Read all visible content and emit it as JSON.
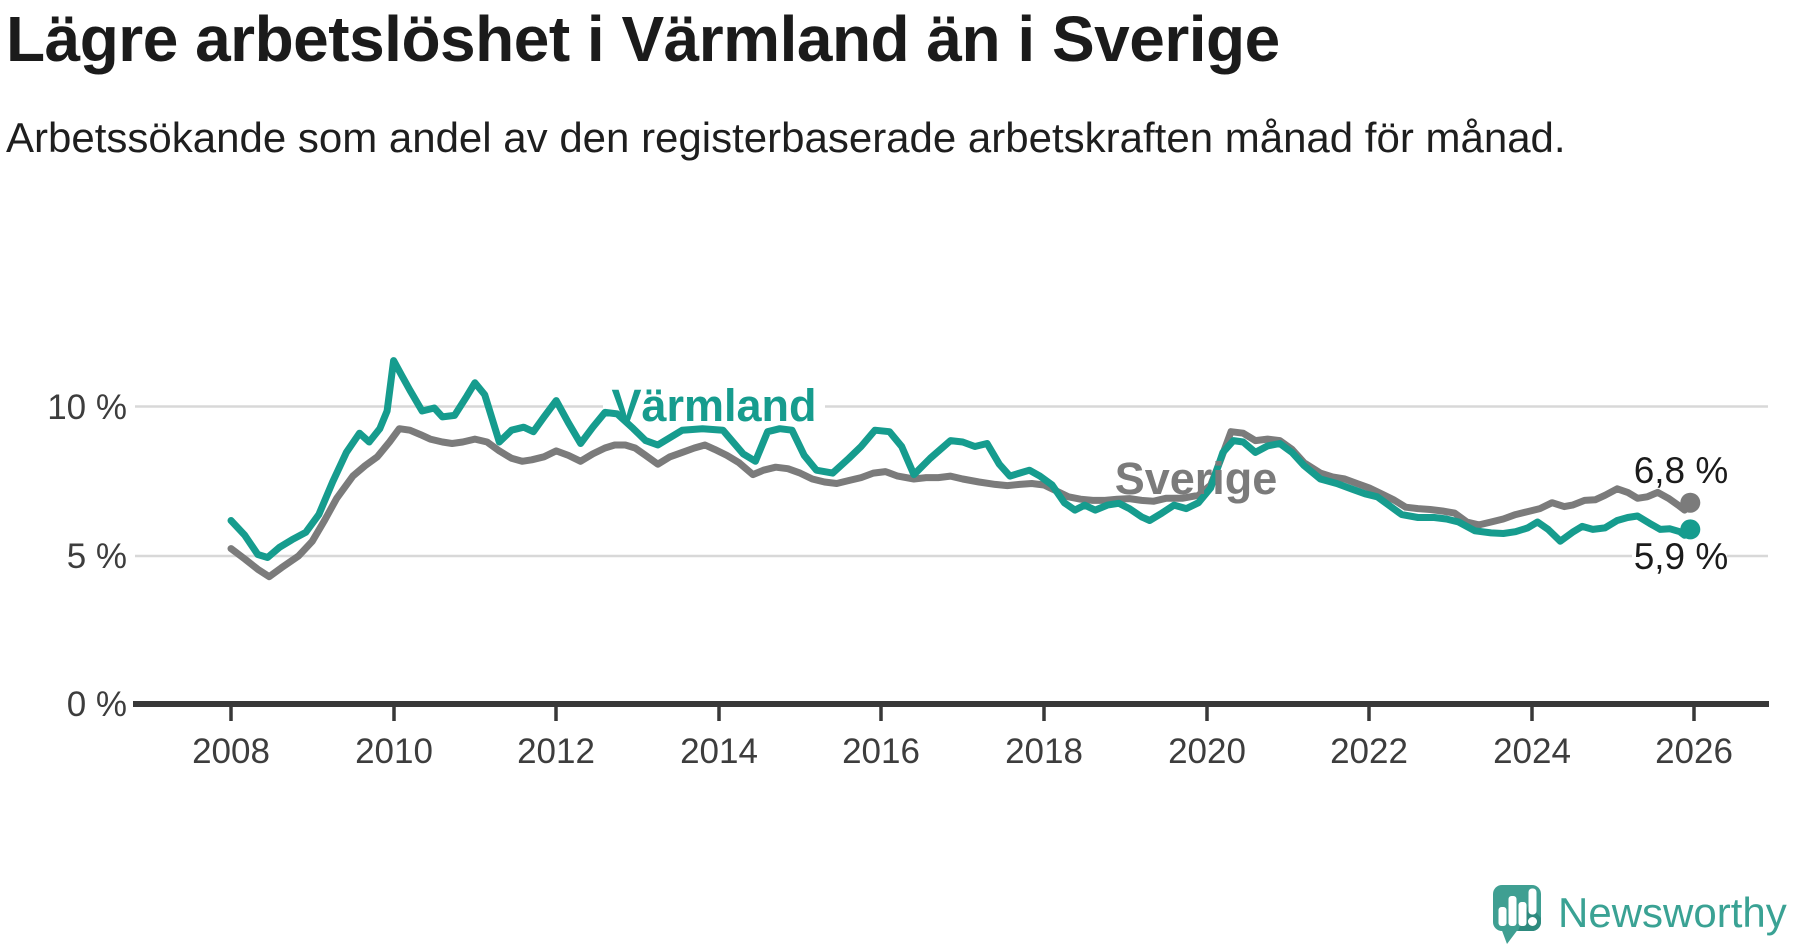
{
  "title": "Lägre arbetslöshet i Värmland än i Sverige",
  "subtitle": "Arbetssökande som andel av den registerbaserade arbetskraften månad för månad.",
  "axes": {
    "y_ticks": [
      "0 %",
      "5 %",
      "10 %"
    ],
    "x_ticks": [
      "2008",
      "2010",
      "2012",
      "2014",
      "2016",
      "2018",
      "2020",
      "2022",
      "2024",
      "2026"
    ]
  },
  "branding": {
    "wordmark": "Newsworthy",
    "color": "#3aa294"
  },
  "chart_data": {
    "type": "line",
    "title": "Lägre arbetslöshet i Värmland än i Sverige",
    "subtitle": "Arbetssökande som andel av den registerbaserade arbetskraften månad för månad.",
    "unit": "%",
    "xlabel": "",
    "ylabel": "",
    "xlim": [
      2007.6,
      2026.9
    ],
    "ylim": [
      0,
      11.8
    ],
    "grid": "horizontal",
    "grid_y_values": [
      5,
      10
    ],
    "legend_position": "inline-labels",
    "series": [
      {
        "name": "Sverige",
        "color": "#7b7b7b",
        "end_label": "6,8 %",
        "end_value": 6.8,
        "points": [
          [
            2008.0,
            5.25
          ],
          [
            2008.17,
            4.9
          ],
          [
            2008.33,
            4.55
          ],
          [
            2008.47,
            4.3
          ],
          [
            2008.62,
            4.6
          ],
          [
            2008.83,
            5.0
          ],
          [
            2009.0,
            5.5
          ],
          [
            2009.15,
            6.2
          ],
          [
            2009.3,
            6.95
          ],
          [
            2009.5,
            7.7
          ],
          [
            2009.65,
            8.05
          ],
          [
            2009.8,
            8.35
          ],
          [
            2009.95,
            8.85
          ],
          [
            2010.07,
            9.3
          ],
          [
            2010.2,
            9.25
          ],
          [
            2010.33,
            9.1
          ],
          [
            2010.45,
            8.95
          ],
          [
            2010.6,
            8.85
          ],
          [
            2010.72,
            8.8
          ],
          [
            2010.85,
            8.85
          ],
          [
            2011.0,
            8.95
          ],
          [
            2011.15,
            8.85
          ],
          [
            2011.3,
            8.55
          ],
          [
            2011.45,
            8.3
          ],
          [
            2011.58,
            8.2
          ],
          [
            2011.7,
            8.25
          ],
          [
            2011.85,
            8.35
          ],
          [
            2012.0,
            8.55
          ],
          [
            2012.15,
            8.4
          ],
          [
            2012.3,
            8.2
          ],
          [
            2012.45,
            8.45
          ],
          [
            2012.6,
            8.65
          ],
          [
            2012.72,
            8.75
          ],
          [
            2012.85,
            8.75
          ],
          [
            2012.97,
            8.65
          ],
          [
            2013.1,
            8.4
          ],
          [
            2013.25,
            8.1
          ],
          [
            2013.4,
            8.35
          ],
          [
            2013.55,
            8.5
          ],
          [
            2013.7,
            8.65
          ],
          [
            2013.83,
            8.75
          ],
          [
            2013.95,
            8.6
          ],
          [
            2014.1,
            8.4
          ],
          [
            2014.25,
            8.15
          ],
          [
            2014.42,
            7.75
          ],
          [
            2014.55,
            7.9
          ],
          [
            2014.7,
            8.0
          ],
          [
            2014.85,
            7.95
          ],
          [
            2015.0,
            7.8
          ],
          [
            2015.15,
            7.6
          ],
          [
            2015.3,
            7.5
          ],
          [
            2015.45,
            7.45
          ],
          [
            2015.6,
            7.55
          ],
          [
            2015.75,
            7.65
          ],
          [
            2015.9,
            7.8
          ],
          [
            2016.05,
            7.85
          ],
          [
            2016.2,
            7.7
          ],
          [
            2016.4,
            7.6
          ],
          [
            2016.55,
            7.65
          ],
          [
            2016.7,
            7.65
          ],
          [
            2016.85,
            7.7
          ],
          [
            2017.0,
            7.6
          ],
          [
            2017.2,
            7.5
          ],
          [
            2017.4,
            7.42
          ],
          [
            2017.55,
            7.38
          ],
          [
            2017.7,
            7.42
          ],
          [
            2017.85,
            7.45
          ],
          [
            2018.0,
            7.4
          ],
          [
            2018.15,
            7.2
          ],
          [
            2018.3,
            7.0
          ],
          [
            2018.45,
            6.92
          ],
          [
            2018.6,
            6.88
          ],
          [
            2018.75,
            6.88
          ],
          [
            2018.9,
            6.92
          ],
          [
            2019.05,
            6.94
          ],
          [
            2019.2,
            6.88
          ],
          [
            2019.35,
            6.85
          ],
          [
            2019.5,
            6.95
          ],
          [
            2019.7,
            6.95
          ],
          [
            2019.9,
            7.05
          ],
          [
            2020.05,
            7.4
          ],
          [
            2020.18,
            8.3
          ],
          [
            2020.3,
            9.2
          ],
          [
            2020.45,
            9.15
          ],
          [
            2020.6,
            8.9
          ],
          [
            2020.75,
            8.95
          ],
          [
            2020.9,
            8.9
          ],
          [
            2021.05,
            8.6
          ],
          [
            2021.2,
            8.15
          ],
          [
            2021.4,
            7.8
          ],
          [
            2021.55,
            7.67
          ],
          [
            2021.7,
            7.6
          ],
          [
            2021.85,
            7.45
          ],
          [
            2022.0,
            7.3
          ],
          [
            2022.15,
            7.1
          ],
          [
            2022.3,
            6.9
          ],
          [
            2022.45,
            6.65
          ],
          [
            2022.6,
            6.6
          ],
          [
            2022.75,
            6.57
          ],
          [
            2022.9,
            6.52
          ],
          [
            2023.05,
            6.45
          ],
          [
            2023.2,
            6.15
          ],
          [
            2023.35,
            6.05
          ],
          [
            2023.5,
            6.15
          ],
          [
            2023.65,
            6.25
          ],
          [
            2023.8,
            6.4
          ],
          [
            2023.95,
            6.5
          ],
          [
            2024.1,
            6.6
          ],
          [
            2024.25,
            6.8
          ],
          [
            2024.4,
            6.67
          ],
          [
            2024.5,
            6.72
          ],
          [
            2024.65,
            6.88
          ],
          [
            2024.78,
            6.9
          ],
          [
            2024.9,
            7.05
          ],
          [
            2025.05,
            7.27
          ],
          [
            2025.18,
            7.15
          ],
          [
            2025.3,
            6.95
          ],
          [
            2025.42,
            7.0
          ],
          [
            2025.55,
            7.15
          ],
          [
            2025.68,
            6.95
          ],
          [
            2025.8,
            6.72
          ],
          [
            2025.88,
            6.55
          ],
          [
            2025.95,
            6.8
          ]
        ]
      },
      {
        "name": "Värmland",
        "color": "#169c8e",
        "end_label": "5,9 %",
        "end_value": 5.9,
        "points": [
          [
            2008.0,
            6.2
          ],
          [
            2008.17,
            5.7
          ],
          [
            2008.33,
            5.05
          ],
          [
            2008.45,
            4.95
          ],
          [
            2008.6,
            5.3
          ],
          [
            2008.75,
            5.55
          ],
          [
            2008.92,
            5.8
          ],
          [
            2009.08,
            6.4
          ],
          [
            2009.25,
            7.5
          ],
          [
            2009.42,
            8.5
          ],
          [
            2009.58,
            9.15
          ],
          [
            2009.7,
            8.85
          ],
          [
            2009.83,
            9.3
          ],
          [
            2009.92,
            9.9
          ],
          [
            2010.0,
            11.6
          ],
          [
            2010.1,
            11.1
          ],
          [
            2010.2,
            10.6
          ],
          [
            2010.35,
            9.9
          ],
          [
            2010.5,
            10.0
          ],
          [
            2010.6,
            9.7
          ],
          [
            2010.75,
            9.75
          ],
          [
            2010.9,
            10.4
          ],
          [
            2011.0,
            10.85
          ],
          [
            2011.12,
            10.45
          ],
          [
            2011.3,
            8.85
          ],
          [
            2011.45,
            9.25
          ],
          [
            2011.6,
            9.35
          ],
          [
            2011.72,
            9.2
          ],
          [
            2011.85,
            9.7
          ],
          [
            2012.0,
            10.25
          ],
          [
            2012.15,
            9.5
          ],
          [
            2012.3,
            8.8
          ],
          [
            2012.45,
            9.35
          ],
          [
            2012.6,
            9.85
          ],
          [
            2012.75,
            9.8
          ],
          [
            2012.95,
            9.3
          ],
          [
            2013.1,
            8.9
          ],
          [
            2013.25,
            8.75
          ],
          [
            2013.4,
            9.0
          ],
          [
            2013.55,
            9.25
          ],
          [
            2013.8,
            9.3
          ],
          [
            2014.05,
            9.25
          ],
          [
            2014.3,
            8.45
          ],
          [
            2014.45,
            8.2
          ],
          [
            2014.6,
            9.2
          ],
          [
            2014.75,
            9.3
          ],
          [
            2014.9,
            9.25
          ],
          [
            2015.05,
            8.4
          ],
          [
            2015.2,
            7.9
          ],
          [
            2015.4,
            7.8
          ],
          [
            2015.6,
            8.3
          ],
          [
            2015.75,
            8.7
          ],
          [
            2015.92,
            9.25
          ],
          [
            2016.1,
            9.2
          ],
          [
            2016.25,
            8.7
          ],
          [
            2016.4,
            7.75
          ],
          [
            2016.6,
            8.3
          ],
          [
            2016.85,
            8.9
          ],
          [
            2017.0,
            8.85
          ],
          [
            2017.15,
            8.7
          ],
          [
            2017.3,
            8.8
          ],
          [
            2017.45,
            8.1
          ],
          [
            2017.58,
            7.7
          ],
          [
            2017.7,
            7.8
          ],
          [
            2017.82,
            7.9
          ],
          [
            2017.95,
            7.7
          ],
          [
            2018.1,
            7.4
          ],
          [
            2018.25,
            6.8
          ],
          [
            2018.38,
            6.55
          ],
          [
            2018.5,
            6.72
          ],
          [
            2018.63,
            6.55
          ],
          [
            2018.78,
            6.72
          ],
          [
            2018.92,
            6.78
          ],
          [
            2019.05,
            6.6
          ],
          [
            2019.2,
            6.32
          ],
          [
            2019.3,
            6.2
          ],
          [
            2019.45,
            6.45
          ],
          [
            2019.6,
            6.72
          ],
          [
            2019.75,
            6.6
          ],
          [
            2019.9,
            6.8
          ],
          [
            2020.05,
            7.3
          ],
          [
            2020.2,
            8.5
          ],
          [
            2020.33,
            8.9
          ],
          [
            2020.45,
            8.85
          ],
          [
            2020.6,
            8.5
          ],
          [
            2020.75,
            8.72
          ],
          [
            2020.9,
            8.8
          ],
          [
            2021.05,
            8.5
          ],
          [
            2021.2,
            8.05
          ],
          [
            2021.4,
            7.6
          ],
          [
            2021.6,
            7.45
          ],
          [
            2021.8,
            7.25
          ],
          [
            2021.95,
            7.1
          ],
          [
            2022.1,
            7.0
          ],
          [
            2022.25,
            6.7
          ],
          [
            2022.4,
            6.4
          ],
          [
            2022.6,
            6.3
          ],
          [
            2022.8,
            6.3
          ],
          [
            2022.95,
            6.25
          ],
          [
            2023.1,
            6.15
          ],
          [
            2023.3,
            5.85
          ],
          [
            2023.5,
            5.78
          ],
          [
            2023.65,
            5.76
          ],
          [
            2023.8,
            5.82
          ],
          [
            2023.95,
            5.95
          ],
          [
            2024.07,
            6.15
          ],
          [
            2024.2,
            5.9
          ],
          [
            2024.35,
            5.5
          ],
          [
            2024.5,
            5.8
          ],
          [
            2024.62,
            6.0
          ],
          [
            2024.75,
            5.9
          ],
          [
            2024.9,
            5.95
          ],
          [
            2025.05,
            6.2
          ],
          [
            2025.18,
            6.3
          ],
          [
            2025.3,
            6.35
          ],
          [
            2025.45,
            6.1
          ],
          [
            2025.58,
            5.9
          ],
          [
            2025.7,
            5.92
          ],
          [
            2025.82,
            5.82
          ],
          [
            2025.88,
            5.7
          ],
          [
            2025.95,
            5.9
          ]
        ]
      }
    ]
  }
}
